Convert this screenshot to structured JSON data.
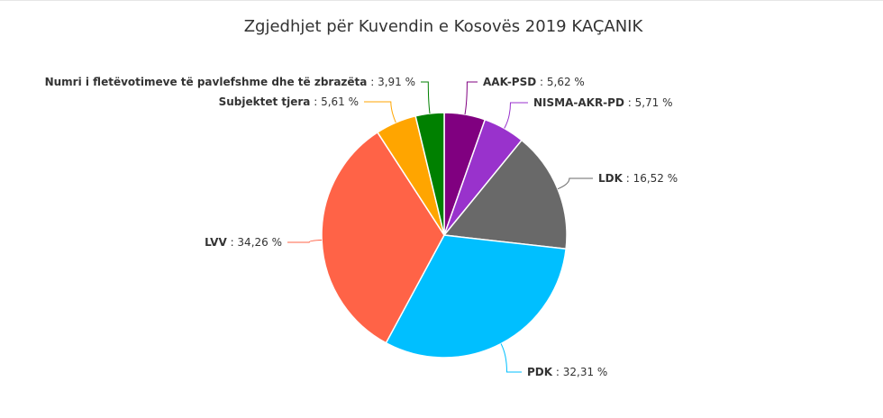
{
  "chart_data": {
    "type": "pie",
    "title": "Zgjedhjet për Kuvendin e Kosovës 2019 KAÇANIK",
    "unit": "%",
    "slices": [
      {
        "name": "AAK-PSD",
        "value": 5.62,
        "label": "5,62 %",
        "color": "#800080"
      },
      {
        "name": "NISMA-AKR-PD",
        "value": 5.71,
        "label": "5,71 %",
        "color": "#9932cc"
      },
      {
        "name": "LDK",
        "value": 16.52,
        "label": "16,52 %",
        "color": "#696969"
      },
      {
        "name": "PDK",
        "value": 32.31,
        "label": "32,31 %",
        "color": "#00bfff"
      },
      {
        "name": "LVV",
        "value": 34.26,
        "label": "34,26 %",
        "color": "#ff6347"
      },
      {
        "name": "Subjektet tjera",
        "value": 5.61,
        "label": "5,61 %",
        "color": "#ffa500"
      },
      {
        "name": "Numri i fletëvotimeve të pavlefshme dhe të zbrazëta",
        "value": 3.91,
        "label": "3,91 %",
        "color": "#008000"
      }
    ]
  }
}
